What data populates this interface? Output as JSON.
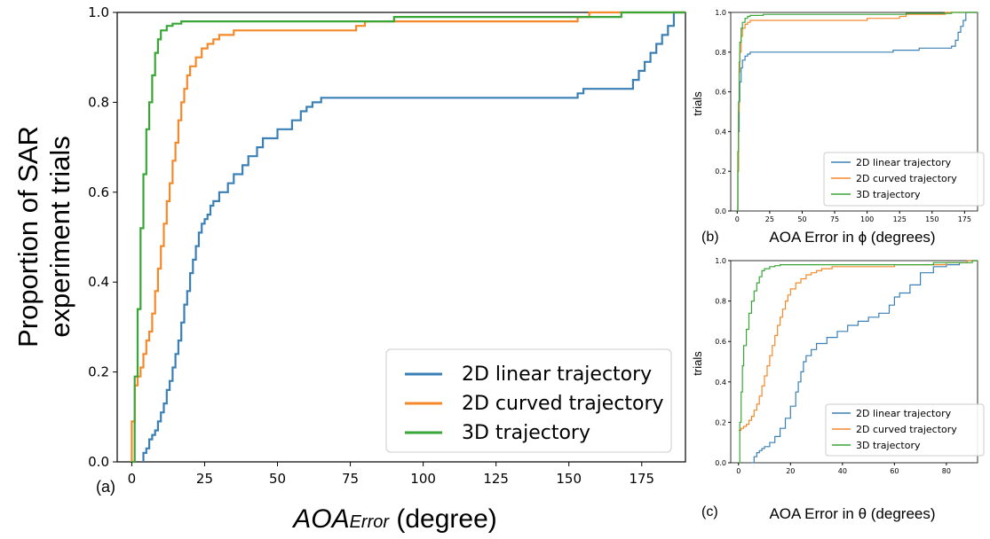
{
  "colors": {
    "linear": "#3a80b7",
    "curved": "#f5892a",
    "three_d": "#3aa638"
  },
  "chart_data": [
    {
      "id": "a",
      "type": "line",
      "step": true,
      "panel_label": "(a)",
      "ylabel_line1": "Proportion of SAR",
      "ylabel_line2": "experiment trials",
      "xlabel_main": "AOA",
      "xlabel_sub": "Error",
      "xlabel_rest": " (degree)",
      "xlim": [
        -5,
        190
      ],
      "ylim": [
        0,
        1
      ],
      "xticks": [
        0,
        25,
        50,
        75,
        100,
        125,
        150,
        175
      ],
      "yticks": [
        0.0,
        0.2,
        0.4,
        0.6,
        0.8,
        1.0
      ],
      "legend": "bottom-right",
      "series": [
        {
          "name": "2D linear trajectory",
          "color_key": "linear",
          "x": [
            4,
            4,
            5,
            6,
            7,
            8,
            9,
            10,
            11,
            12,
            13,
            14,
            15,
            16,
            17,
            18,
            19,
            20,
            21,
            22,
            23,
            24,
            25,
            26,
            27,
            28,
            30,
            33,
            35,
            38,
            40,
            43,
            45,
            50,
            55,
            58,
            60,
            62,
            65,
            75,
            80,
            100,
            120,
            140,
            150,
            153,
            155,
            160,
            170,
            172,
            174,
            176,
            178,
            180,
            182,
            184,
            186
          ],
          "y": [
            0,
            0.02,
            0.03,
            0.05,
            0.06,
            0.07,
            0.09,
            0.11,
            0.13,
            0.16,
            0.18,
            0.21,
            0.24,
            0.27,
            0.31,
            0.35,
            0.38,
            0.42,
            0.45,
            0.48,
            0.51,
            0.53,
            0.54,
            0.55,
            0.57,
            0.58,
            0.6,
            0.62,
            0.64,
            0.66,
            0.68,
            0.7,
            0.72,
            0.74,
            0.76,
            0.78,
            0.79,
            0.8,
            0.81,
            0.81,
            0.81,
            0.81,
            0.81,
            0.81,
            0.81,
            0.82,
            0.83,
            0.83,
            0.83,
            0.85,
            0.87,
            0.89,
            0.91,
            0.93,
            0.95,
            0.97,
            1.0
          ]
        },
        {
          "name": "2D curved trajectory",
          "color_key": "curved",
          "x": [
            0,
            0,
            1,
            2,
            3,
            4,
            5,
            6,
            7,
            8,
            9,
            10,
            11,
            12,
            13,
            14,
            15,
            16,
            17,
            18,
            19,
            20,
            22,
            24,
            26,
            28,
            30,
            35,
            40,
            75,
            77,
            80,
            90,
            100,
            120,
            150,
            153,
            157
          ],
          "y": [
            0,
            0.09,
            0.17,
            0.19,
            0.21,
            0.24,
            0.27,
            0.29,
            0.33,
            0.38,
            0.43,
            0.48,
            0.53,
            0.58,
            0.62,
            0.67,
            0.71,
            0.76,
            0.8,
            0.83,
            0.86,
            0.88,
            0.9,
            0.92,
            0.93,
            0.94,
            0.95,
            0.96,
            0.96,
            0.96,
            0.97,
            0.98,
            0.98,
            0.98,
            0.98,
            0.98,
            0.99,
            1.0
          ]
        },
        {
          "name": "3D trajectory",
          "color_key": "three_d",
          "x": [
            0,
            1,
            2,
            3,
            4,
            5,
            6,
            7,
            8,
            9,
            10,
            12,
            14,
            17,
            20,
            25,
            30,
            40,
            60,
            90,
            150,
            168
          ],
          "y": [
            0,
            0.19,
            0.34,
            0.52,
            0.64,
            0.74,
            0.8,
            0.86,
            0.91,
            0.94,
            0.96,
            0.97,
            0.975,
            0.98,
            0.98,
            0.98,
            0.98,
            0.98,
            0.98,
            0.99,
            0.99,
            1.0
          ]
        }
      ]
    },
    {
      "id": "b",
      "type": "line",
      "step": true,
      "panel_label": "(b)",
      "ylabel": "trials",
      "xlabel": "AOA Error in ϕ (degrees)",
      "xlim": [
        -5,
        185
      ],
      "ylim": [
        0,
        1
      ],
      "xticks": [
        0,
        25,
        50,
        75,
        100,
        125,
        150,
        175
      ],
      "yticks": [
        0.0,
        0.2,
        0.4,
        0.6,
        0.8,
        1.0
      ],
      "legend": "bottom-right",
      "series": [
        {
          "name": "2D linear trajectory",
          "color_key": "linear",
          "x": [
            0,
            0.5,
            1,
            1.5,
            2,
            3,
            4,
            6,
            8,
            10,
            20,
            60,
            100,
            120,
            140,
            160,
            165,
            168,
            170,
            172,
            174,
            176
          ],
          "y": [
            0,
            0.2,
            0.4,
            0.55,
            0.65,
            0.72,
            0.76,
            0.78,
            0.79,
            0.8,
            0.8,
            0.8,
            0.8,
            0.81,
            0.82,
            0.82,
            0.83,
            0.86,
            0.9,
            0.93,
            0.96,
            1.0
          ]
        },
        {
          "name": "2D curved trajectory",
          "color_key": "curved",
          "x": [
            0,
            0.5,
            1,
            1.5,
            2,
            3,
            4,
            6,
            8,
            10,
            20,
            40,
            60,
            80,
            100,
            125,
            130,
            160
          ],
          "y": [
            0,
            0.2,
            0.5,
            0.7,
            0.8,
            0.88,
            0.92,
            0.94,
            0.95,
            0.96,
            0.96,
            0.96,
            0.96,
            0.96,
            0.97,
            0.98,
            0.99,
            1.0
          ]
        },
        {
          "name": "3D trajectory",
          "color_key": "three_d",
          "x": [
            0,
            0.5,
            1,
            1.5,
            2,
            3,
            4,
            6,
            8,
            10,
            20,
            60,
            100,
            130,
            165
          ],
          "y": [
            0,
            0.3,
            0.55,
            0.75,
            0.85,
            0.92,
            0.95,
            0.97,
            0.98,
            0.985,
            0.99,
            0.99,
            0.99,
            0.995,
            1.0
          ]
        }
      ]
    },
    {
      "id": "c",
      "type": "line",
      "step": true,
      "panel_label": "(c)",
      "ylabel": "trials",
      "xlabel": "AOA Error in θ (degrees)",
      "xlim": [
        -3,
        92
      ],
      "ylim": [
        0,
        1
      ],
      "xticks": [
        0,
        20,
        40,
        60,
        80
      ],
      "yticks": [
        0.0,
        0.2,
        0.4,
        0.6,
        0.8,
        1.0
      ],
      "legend": "bottom-right",
      "series": [
        {
          "name": "2D linear trajectory",
          "color_key": "linear",
          "x": [
            5,
            6,
            7,
            8,
            9,
            10,
            12,
            14,
            16,
            18,
            20,
            22,
            23,
            24,
            25,
            26,
            28,
            30,
            34,
            38,
            42,
            46,
            50,
            54,
            58,
            60,
            62,
            66,
            70,
            75,
            80,
            85,
            88
          ],
          "y": [
            0,
            0.03,
            0.05,
            0.06,
            0.07,
            0.08,
            0.1,
            0.13,
            0.17,
            0.22,
            0.28,
            0.35,
            0.4,
            0.45,
            0.5,
            0.53,
            0.56,
            0.59,
            0.62,
            0.65,
            0.68,
            0.7,
            0.72,
            0.74,
            0.78,
            0.82,
            0.84,
            0.88,
            0.94,
            0.97,
            0.98,
            0.99,
            1.0
          ]
        },
        {
          "name": "2D curved trajectory",
          "color_key": "curved",
          "x": [
            0,
            1,
            2,
            3,
            4,
            5,
            6,
            7,
            8,
            9,
            10,
            11,
            12,
            13,
            14,
            15,
            16,
            17,
            18,
            19,
            20,
            22,
            24,
            26,
            28,
            30,
            32,
            36,
            40,
            50,
            60,
            70,
            80,
            88
          ],
          "y": [
            0.16,
            0.17,
            0.18,
            0.19,
            0.21,
            0.23,
            0.26,
            0.29,
            0.33,
            0.38,
            0.43,
            0.48,
            0.53,
            0.58,
            0.63,
            0.68,
            0.72,
            0.76,
            0.8,
            0.83,
            0.86,
            0.89,
            0.91,
            0.93,
            0.94,
            0.95,
            0.96,
            0.97,
            0.97,
            0.97,
            0.98,
            0.98,
            0.99,
            1.0
          ]
        },
        {
          "name": "3D trajectory",
          "color_key": "three_d",
          "x": [
            0,
            0.5,
            1,
            1.5,
            2,
            3,
            4,
            5,
            6,
            7,
            8,
            9,
            10,
            12,
            14,
            16,
            20,
            30,
            60,
            75,
            90
          ],
          "y": [
            0,
            0.2,
            0.35,
            0.48,
            0.58,
            0.66,
            0.74,
            0.8,
            0.85,
            0.89,
            0.92,
            0.95,
            0.96,
            0.97,
            0.975,
            0.98,
            0.98,
            0.98,
            0.98,
            0.99,
            1.0
          ]
        }
      ]
    }
  ]
}
